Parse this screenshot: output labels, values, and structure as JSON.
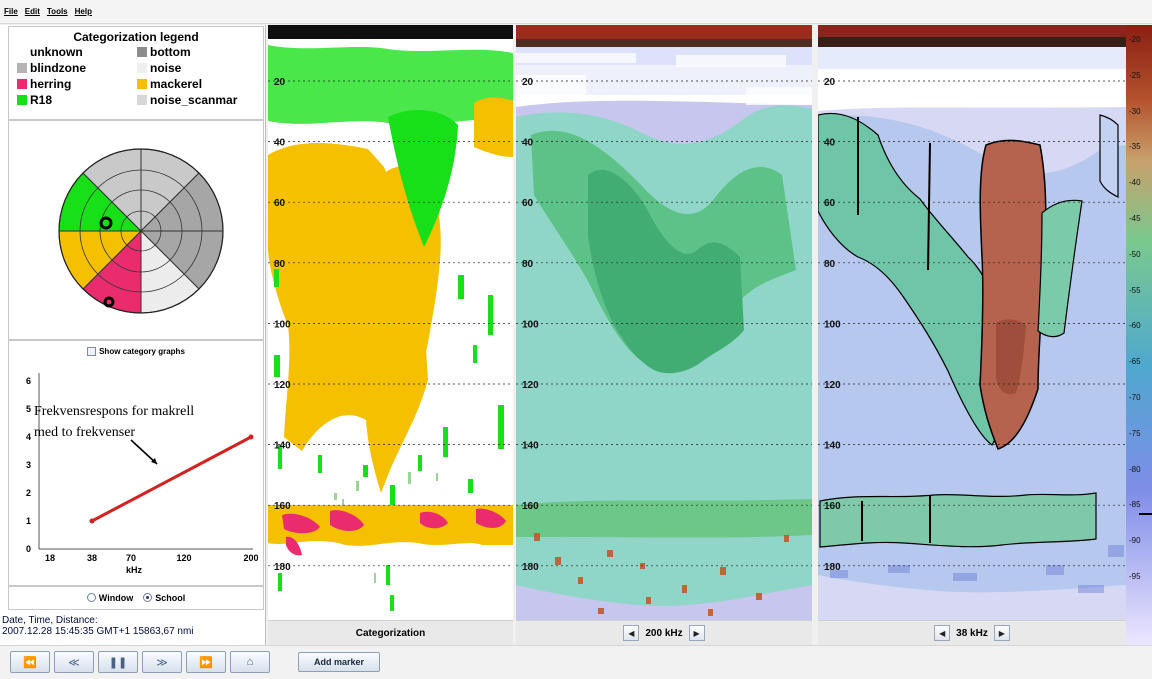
{
  "menu": [
    "File",
    "Edit",
    "Tools",
    "Help"
  ],
  "legend": {
    "title": "Categorization legend",
    "items": [
      {
        "label": "unknown",
        "color": "#ffffff"
      },
      {
        "label": "bottom",
        "color": "#8c8c8c"
      },
      {
        "label": "blindzone",
        "color": "#b4b4b4"
      },
      {
        "label": "noise",
        "color": "#efefef"
      },
      {
        "label": "herring",
        "color": "#ea2c6e"
      },
      {
        "label": "mackerel",
        "color": "#f5c000"
      },
      {
        "label": "R18",
        "color": "#18e018"
      },
      {
        "label": "noise_scanmar",
        "color": "#d7d7d7"
      }
    ]
  },
  "frequency_graph": {
    "show_category_graphs_label": "Show category graphs",
    "annotation_line1": "Frekvensrespons for makrell",
    "annotation_line2": "med to frekvenser",
    "xlabel": "kHz",
    "x_ticks": [
      "18",
      "38",
      "70",
      "120",
      "200"
    ],
    "y_ticks": [
      "0",
      "1",
      "2",
      "3",
      "4",
      "5",
      "6"
    ],
    "chart_data": {
      "type": "line",
      "x": [
        38,
        200
      ],
      "y": [
        1,
        4
      ],
      "xlabel": "kHz",
      "ylim": [
        0,
        6
      ],
      "color": "#d62020"
    }
  },
  "mode": {
    "window_label": "Window",
    "school_label": "School",
    "selected": "School"
  },
  "info": {
    "label": "Date,  Time,  Distance:",
    "value": "2007.12.28   15:45:35 GMT+1   15863,67 nmi"
  },
  "echograms": {
    "depth_ticks": [
      "20",
      "40",
      "60",
      "80",
      "100",
      "120",
      "140",
      "160",
      "180"
    ],
    "panel1_label": "Categorization",
    "panel2_freq": "200 kHz",
    "panel3_freq": "38 kHz"
  },
  "colorbar": {
    "labels": [
      "-20",
      "-25",
      "-30",
      "-35",
      "-40",
      "-45",
      "-50",
      "-55",
      "-60",
      "-65",
      "-70",
      "-75",
      "-80",
      "-85",
      "-90",
      "-95"
    ],
    "marker_value": "-82"
  },
  "toolbar": {
    "add_marker_label": "Add marker",
    "buttons": [
      "fast-backward",
      "step-back",
      "pause",
      "step-forward",
      "fast-forward",
      "home"
    ]
  }
}
